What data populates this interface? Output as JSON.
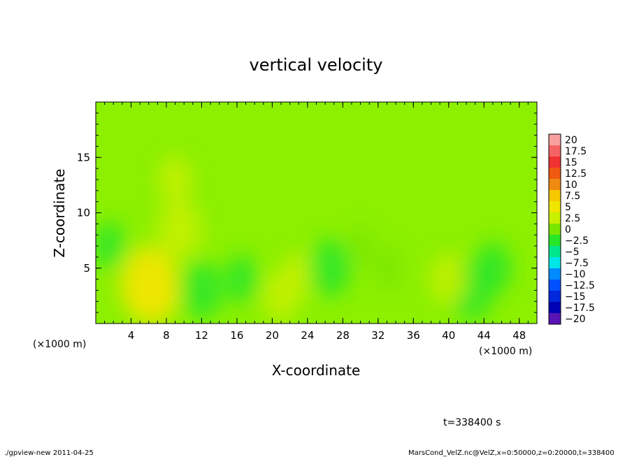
{
  "chart_data": {
    "type": "heatmap",
    "title": "vertical velocity",
    "xlabel": "X-coordinate",
    "ylabel": "Z-coordinate",
    "x_unit": "(×1000 m)",
    "x_unit_right": "(×1000 m)",
    "xlim": [
      0,
      50
    ],
    "ylim": [
      0,
      20
    ],
    "x_ticks": [
      "4",
      "8",
      "12",
      "16",
      "20",
      "24",
      "28",
      "32",
      "36",
      "40",
      "44",
      "48"
    ],
    "y_ticks": [
      "5",
      "10",
      "15"
    ],
    "colorbar": {
      "labels": [
        "20",
        "17.5",
        "15",
        "12.5",
        "10",
        "7.5",
        "5",
        "2.5",
        "0",
        "−2.5",
        "−5",
        "−7.5",
        "−10",
        "−12.5",
        "−15",
        "−17.5",
        "−20"
      ],
      "colors": [
        "#f7a0a0",
        "#f56464",
        "#f03232",
        "#f05a10",
        "#f08a10",
        "#f5c800",
        "#f0e600",
        "#c8f000",
        "#78e600",
        "#28e628",
        "#00e68c",
        "#00e6e6",
        "#008cff",
        "#0050ff",
        "#0028dc",
        "#0000b4",
        "#5a14b4"
      ]
    },
    "features": [
      {
        "x": 6.0,
        "z": 3.6,
        "w": 5.5
      },
      {
        "x": 6.5,
        "z": 3.0,
        "w": 4.5
      },
      {
        "x": 9.5,
        "z": 8.5,
        "w": 3.5
      },
      {
        "x": 9.0,
        "z": 13.0,
        "w": 2.0
      },
      {
        "x": 21.0,
        "z": 2.5,
        "w": 2.5
      },
      {
        "x": 23.0,
        "z": 4.5,
        "w": 1.5
      },
      {
        "x": 12.0,
        "z": 3.0,
        "w": -3.2
      },
      {
        "x": 16.5,
        "z": 4.0,
        "w": -2.0
      },
      {
        "x": 26.5,
        "z": 5.0,
        "w": -3.2
      },
      {
        "x": 42.5,
        "z": 3.0,
        "w": -3.5
      },
      {
        "x": 45.0,
        "z": 5.0,
        "w": -2.5
      },
      {
        "x": 1.5,
        "z": 7.0,
        "w": -2.0
      },
      {
        "x": 40.0,
        "z": 4.0,
        "w": 2.5
      },
      {
        "x": 33.0,
        "z": 5.0,
        "w": 1.2
      },
      {
        "x": 30.0,
        "z": 7.0,
        "w": -0.8
      }
    ]
  },
  "time_label": "t=338400 s",
  "footer_left": "./gpview-new  2011-04-25",
  "footer_right": "MarsCond_VelZ.nc@VelZ,x=0:50000,z=0:20000,t=338400"
}
